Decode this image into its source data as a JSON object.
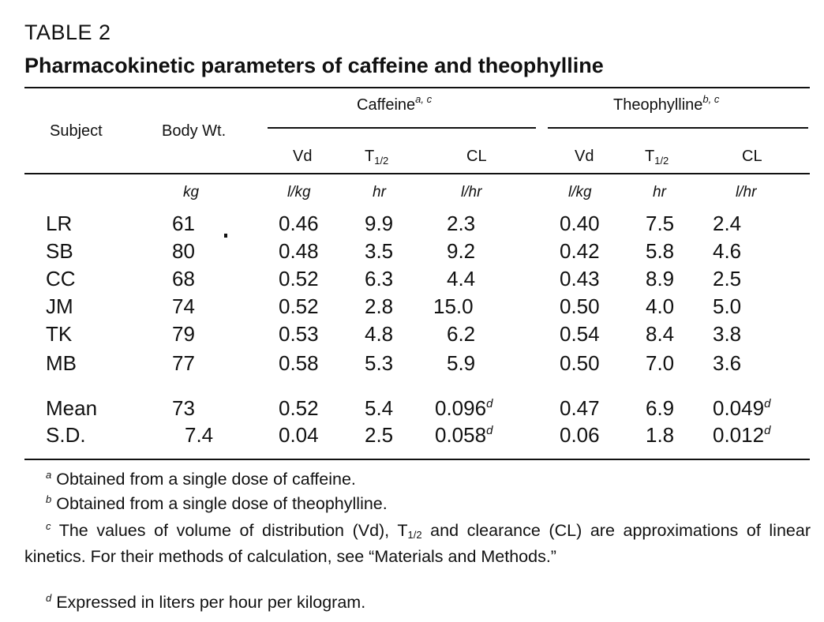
{
  "table": {
    "label": "TABLE 2",
    "title": "Pharmacokinetic parameters of caffeine and theophylline",
    "headers": {
      "subject": "Subject",
      "body_wt": "Body Wt.",
      "caffeine_group": "Caffeine",
      "caffeine_group_marks": "a, c",
      "theophylline_group": "Theophylline",
      "theophylline_group_marks": "b, c",
      "vd": "Vd",
      "t_main": "T",
      "t_sub": "1/2",
      "cl": "CL"
    },
    "units": {
      "body_wt": "kg",
      "vd": "l/kg",
      "t_half": "hr",
      "cl": "l/hr"
    },
    "rows": [
      {
        "subject": "LR",
        "body_wt": "61",
        "caf_vd": "0.46",
        "caf_t": "9.9",
        "caf_cl": "2.3",
        "the_vd": "0.40",
        "the_t": "7.5",
        "the_cl": "2.4"
      },
      {
        "subject": "SB",
        "body_wt": "80",
        "caf_vd": "0.48",
        "caf_t": "3.5",
        "caf_cl": "9.2",
        "the_vd": "0.42",
        "the_t": "5.8",
        "the_cl": "4.6"
      },
      {
        "subject": "CC",
        "body_wt": "68",
        "caf_vd": "0.52",
        "caf_t": "6.3",
        "caf_cl": "4.4",
        "the_vd": "0.43",
        "the_t": "8.9",
        "the_cl": "2.5"
      },
      {
        "subject": "JM",
        "body_wt": "74",
        "caf_vd": "0.52",
        "caf_t": "2.8",
        "caf_cl": "15.0",
        "the_vd": "0.50",
        "the_t": "4.0",
        "the_cl": "5.0"
      },
      {
        "subject": "TK",
        "body_wt": "79",
        "caf_vd": "0.53",
        "caf_t": "4.8",
        "caf_cl": "6.2",
        "the_vd": "0.54",
        "the_t": "8.4",
        "the_cl": "3.8"
      },
      {
        "subject": "MB",
        "body_wt": "77",
        "caf_vd": "0.58",
        "caf_t": "5.3",
        "caf_cl": "5.9",
        "the_vd": "0.50",
        "the_t": "7.0",
        "the_cl": "3.6"
      }
    ],
    "summary": [
      {
        "subject": "Mean",
        "body_wt": "73",
        "caf_vd": "0.52",
        "caf_t": "5.4",
        "caf_cl": "0.096",
        "caf_cl_mark": "d",
        "the_vd": "0.47",
        "the_t": "6.9",
        "the_cl": "0.049",
        "the_cl_mark": "d"
      },
      {
        "subject": "S.D.",
        "body_wt": "7.4",
        "caf_vd": "0.04",
        "caf_t": "2.5",
        "caf_cl": "0.058",
        "caf_cl_mark": "d",
        "the_vd": "0.06",
        "the_t": "1.8",
        "the_cl": "0.012",
        "the_cl_mark": "d"
      }
    ],
    "footnotes": {
      "a": {
        "mark": "a",
        "text": "Obtained from a single dose of caffeine."
      },
      "b": {
        "mark": "b",
        "text": "Obtained from a single dose of theophylline."
      },
      "c": {
        "mark": "c",
        "text_before": "The values of volume of distribution (Vd), T",
        "sub": "1/2",
        "text_after": " and clearance (CL) are approximations of linear kinetics. For their methods of calculation, see “Materials and Methods.”"
      },
      "d": {
        "mark": "d",
        "text": "Expressed in liters per hour per kilogram."
      }
    }
  }
}
